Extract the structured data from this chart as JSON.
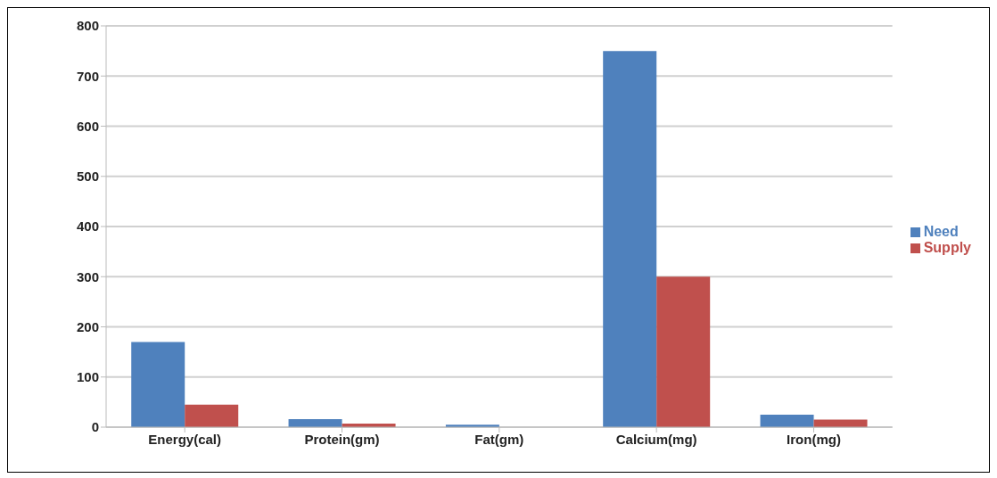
{
  "chart_data": {
    "type": "bar",
    "categories": [
      "Energy(cal)",
      "Protein(gm)",
      "Fat(gm)",
      "Calcium(mg)",
      "Iron(mg)"
    ],
    "series": [
      {
        "name": "Need",
        "color": "#4f81bd",
        "values": [
          170,
          16,
          5,
          750,
          25
        ]
      },
      {
        "name": "Supply",
        "color": "#c0504d",
        "values": [
          45,
          7,
          0,
          300,
          15
        ]
      }
    ],
    "ylim": [
      0,
      800
    ],
    "yticks": [
      0,
      100,
      200,
      300,
      400,
      500,
      600,
      700,
      800
    ],
    "grid": "y",
    "legend": "right"
  }
}
